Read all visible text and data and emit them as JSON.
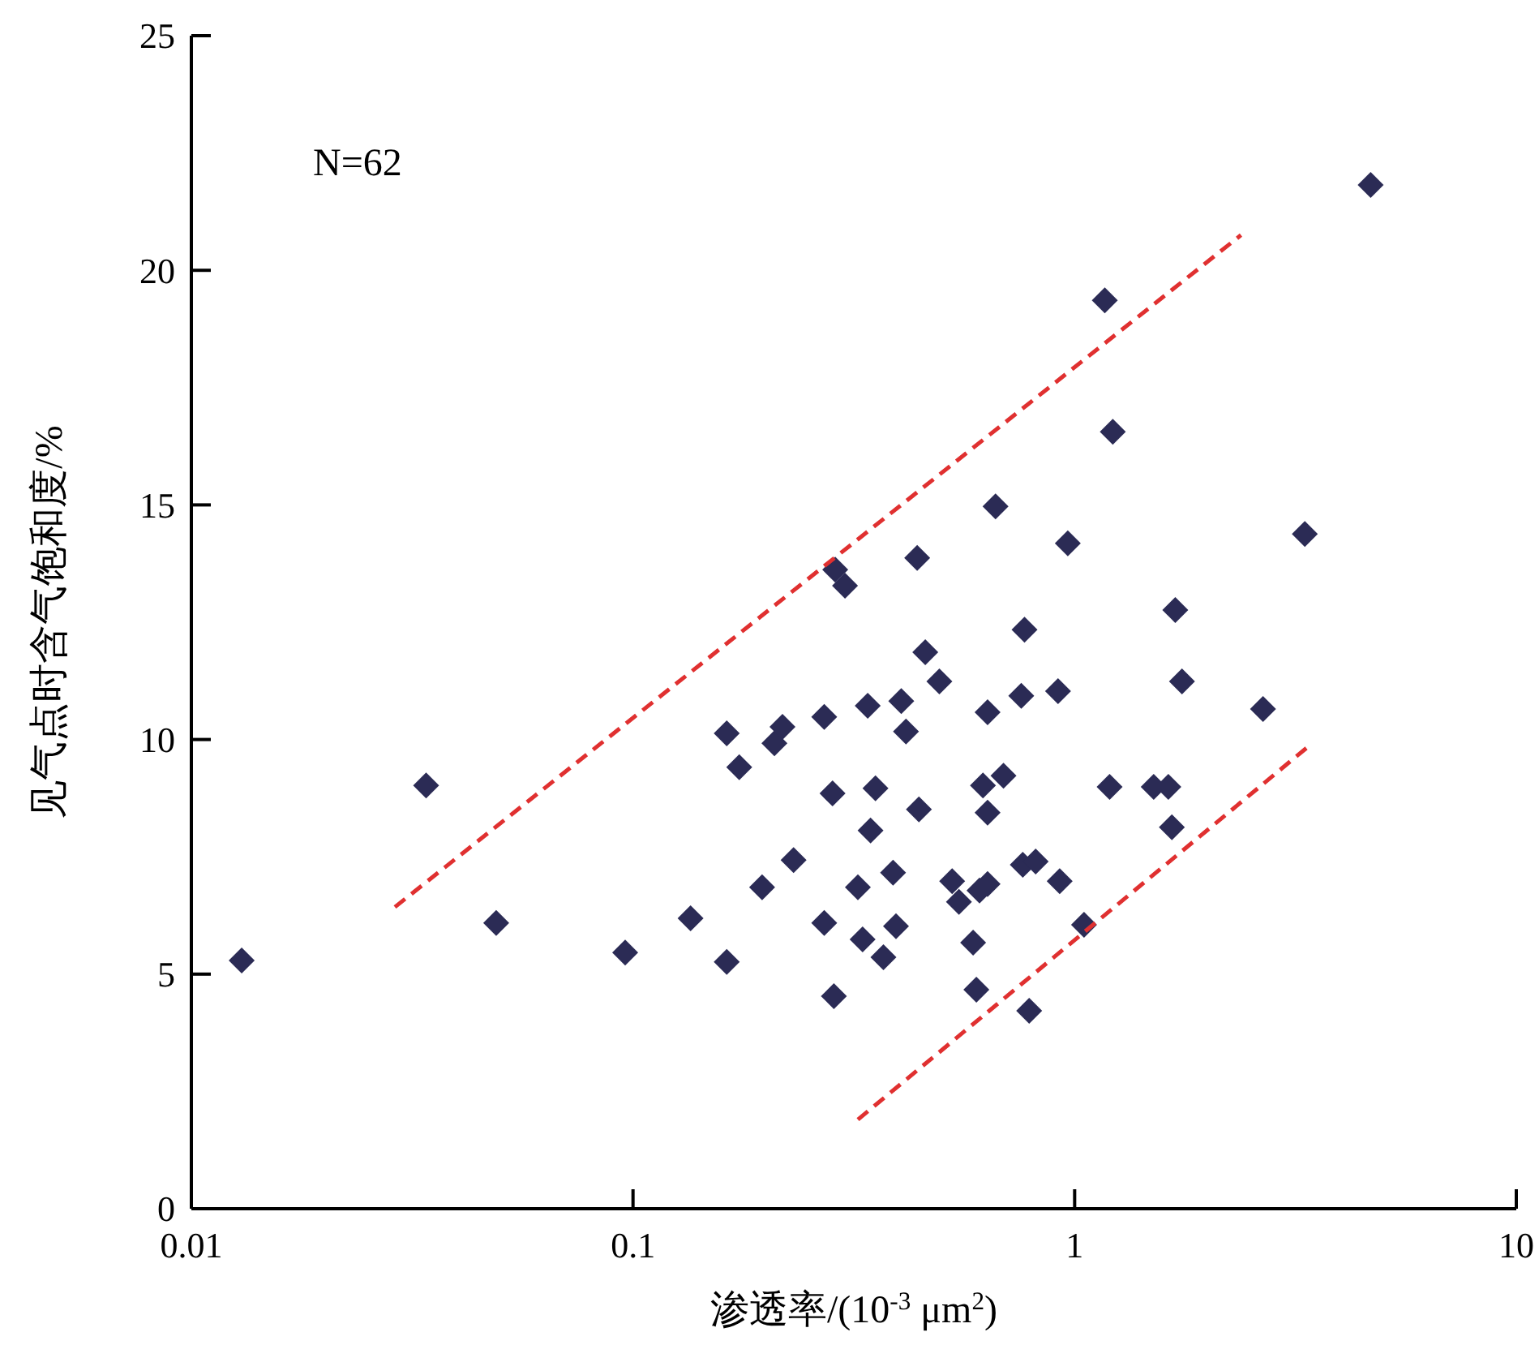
{
  "chart_data": {
    "type": "scatter",
    "xlabel": "渗透率/(10$^{-3}$ μm$^{2}$)",
    "ylabel": "见气点时含气饱和度/%",
    "annotations": [
      "N=62"
    ],
    "log": "x",
    "xlim": [
      0.01,
      10
    ],
    "xticks": [
      0.01,
      0.1,
      1,
      10
    ],
    "ylim": [
      0,
      25
    ],
    "yticks": [
      0,
      5,
      10,
      15,
      20,
      25
    ],
    "grid": false,
    "marker": "diamond",
    "series": [
      {
        "color": "#2b2b55",
        "x": [
          0.013,
          0.034,
          0.049,
          0.096,
          0.135,
          0.163,
          0.163,
          0.174,
          0.196,
          0.209,
          0.218,
          0.231,
          0.271,
          0.271,
          0.283,
          0.285,
          0.287,
          0.302,
          0.323,
          0.331,
          0.34,
          0.345,
          0.354,
          0.369,
          0.388,
          0.394,
          0.405,
          0.415,
          0.44,
          0.444,
          0.459,
          0.494,
          0.528,
          0.547,
          0.589,
          0.599,
          0.609,
          0.62,
          0.635,
          0.635,
          0.635,
          0.662,
          0.69,
          0.757,
          0.763,
          0.77,
          0.789,
          0.816,
          0.917,
          0.925,
          0.965,
          1.05,
          1.17,
          1.2,
          1.22,
          1.51,
          1.63,
          1.66,
          1.69,
          1.75,
          2.67,
          3.32,
          4.68
        ],
        "values": [
          5.29,
          9.02,
          6.09,
          5.46,
          6.19,
          5.26,
          10.13,
          9.41,
          6.85,
          9.92,
          10.27,
          7.43,
          10.48,
          6.09,
          8.85,
          4.53,
          13.62,
          13.28,
          6.85,
          5.74,
          10.72,
          8.06,
          8.96,
          5.36,
          7.16,
          6.02,
          10.82,
          10.17,
          13.87,
          8.51,
          11.86,
          11.24,
          6.98,
          6.54,
          5.67,
          4.67,
          6.78,
          9.02,
          6.92,
          8.44,
          10.58,
          14.97,
          9.23,
          10.93,
          7.33,
          12.34,
          4.22,
          7.4,
          11.03,
          6.98,
          14.18,
          6.05,
          19.36,
          8.99,
          16.56,
          8.99,
          8.99,
          8.13,
          12.76,
          11.24,
          10.65,
          14.38,
          21.82
        ]
      },
      {
        "type": "line",
        "color": "#e03030",
        "line_style": "dashed",
        "marker": "none",
        "x": [
          0.0289,
          2.38
        ],
        "values": [
          6.43,
          20.75
        ]
      },
      {
        "type": "line",
        "color": "#e03030",
        "line_style": "dashed",
        "marker": "none",
        "x": [
          0.323,
          3.35
        ],
        "values": [
          1.9,
          9.82
        ]
      }
    ]
  }
}
